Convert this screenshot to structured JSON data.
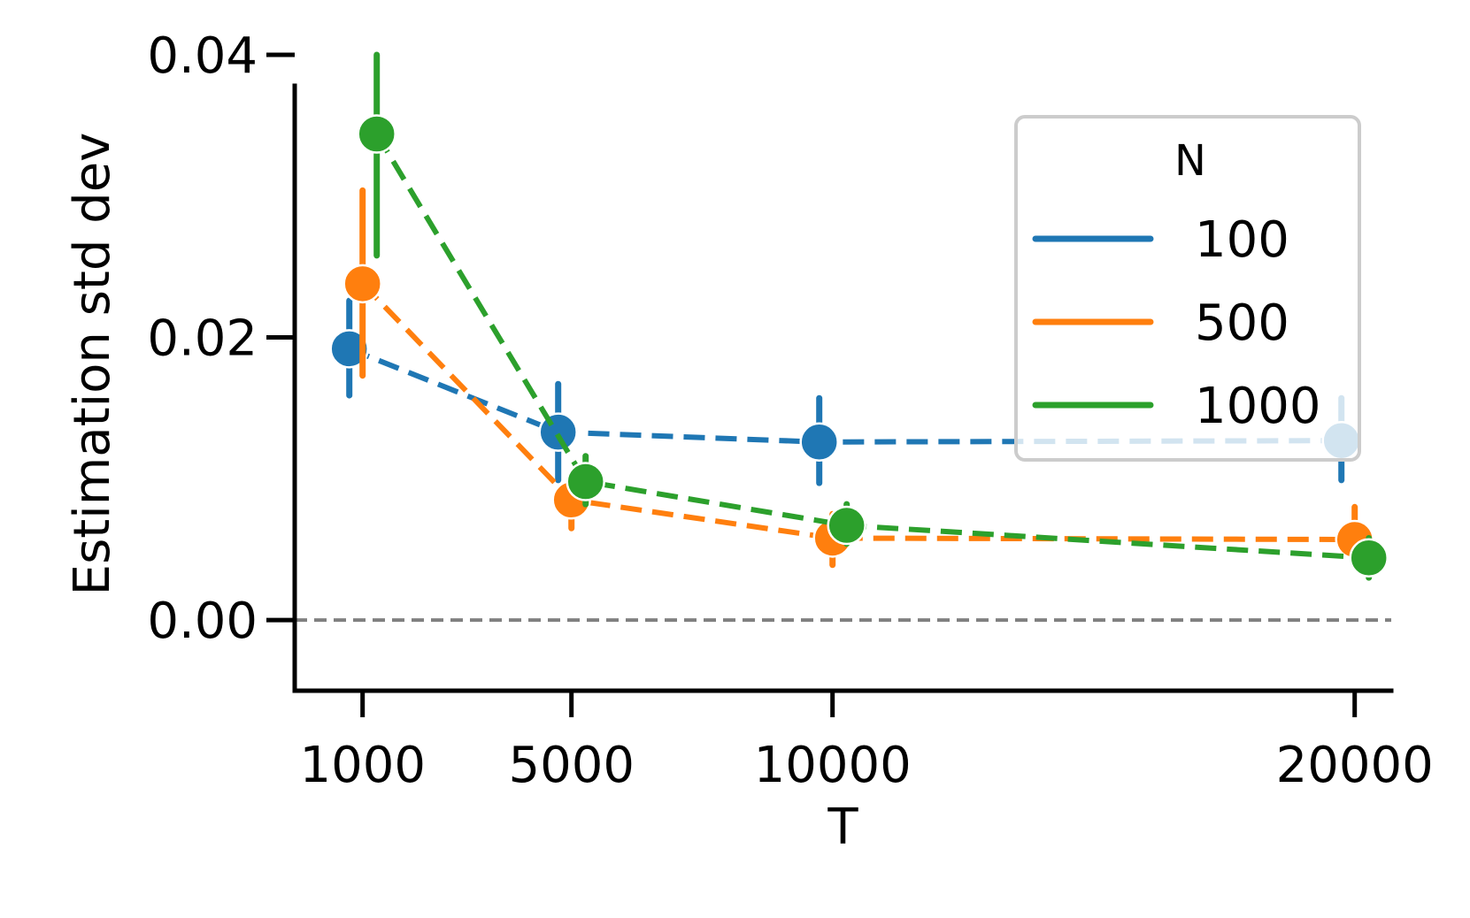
{
  "chart_data": {
    "type": "line",
    "title": "",
    "xlabel": "T",
    "ylabel": "Estimation std dev",
    "x": [
      1000,
      5000,
      10000,
      20000
    ],
    "x_tick_labels": [
      "1000",
      "5000",
      "10000",
      "20000"
    ],
    "xlim": [
      -300,
      20700
    ],
    "y_ticks": [
      0.0,
      0.02,
      0.04
    ],
    "y_tick_labels": [
      "0.00",
      "0.02",
      "0.04"
    ],
    "ylim": [
      -0.005,
      0.04
    ],
    "reference_line": {
      "y": 0.0,
      "style": "dashed",
      "color": "#808080"
    },
    "legend": {
      "title": "N",
      "placement": "top-right"
    },
    "grid": false,
    "series": [
      {
        "name": "100",
        "color": "#1f77b4",
        "values": [
          0.0192,
          0.0133,
          0.0126,
          0.0127
        ],
        "ci_low": [
          0.0159,
          0.0099,
          0.0097,
          0.0099
        ],
        "ci_high": [
          0.0226,
          0.0167,
          0.0157,
          0.0157
        ]
      },
      {
        "name": "500",
        "color": "#ff7f0e",
        "values": [
          0.0238,
          0.0085,
          0.0058,
          0.0057
        ],
        "ci_low": [
          0.0173,
          0.0065,
          0.0039,
          0.004
        ],
        "ci_high": [
          0.0304,
          0.0104,
          0.0075,
          0.008
        ]
      },
      {
        "name": "1000",
        "color": "#2ca02c",
        "values": [
          0.0344,
          0.0098,
          0.0067,
          0.0044
        ],
        "ci_low": [
          0.0258,
          0.0082,
          0.0054,
          0.003
        ],
        "ci_high": [
          0.04,
          0.0116,
          0.0082,
          0.0058
        ]
      }
    ]
  }
}
